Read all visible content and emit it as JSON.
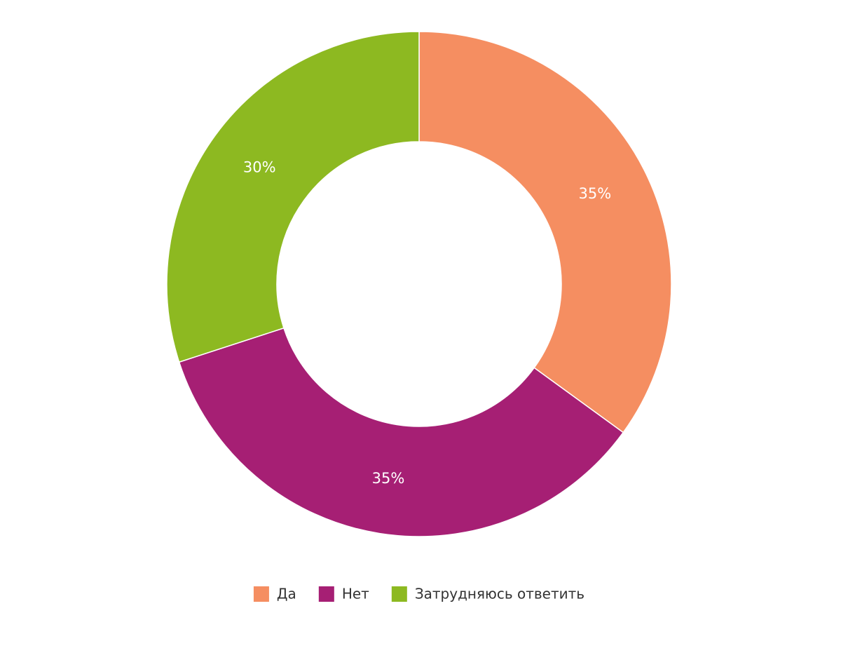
{
  "chart_data": {
    "type": "donut",
    "categories": [
      "Да",
      "Нет",
      "Затрудняюсь ответить"
    ],
    "values": [
      35,
      35,
      30
    ],
    "value_labels": [
      "35%",
      "35%",
      "30%"
    ],
    "colors": [
      "#f58e61",
      "#a61f74",
      "#8db921"
    ]
  }
}
